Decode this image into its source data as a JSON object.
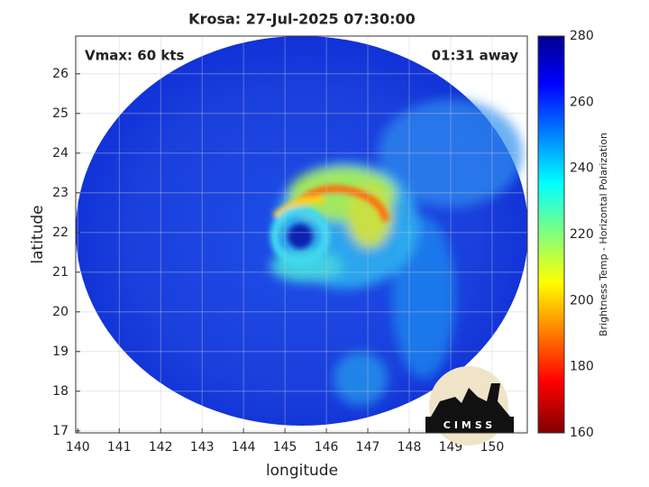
{
  "chart_data": {
    "type": "map",
    "title": "Krosa: 27-Jul-2025 07:30:00",
    "annotations": [
      "Vmax: 60 kts",
      "01:31 away"
    ],
    "xlabel": "longitude",
    "ylabel": "latitude",
    "xlim": [
      139.95,
      150.85
    ],
    "ylim": [
      16.95,
      26.95
    ],
    "xticks": [
      140,
      141,
      142,
      143,
      144,
      145,
      146,
      147,
      148,
      149,
      150
    ],
    "yticks": [
      17,
      18,
      19,
      20,
      21,
      22,
      23,
      24,
      25,
      26
    ],
    "grid": true,
    "colorbar": {
      "label": "Brightness Temp - Horizontal Polarization",
      "clim": [
        160,
        280
      ],
      "ticks": [
        160,
        180,
        200,
        220,
        240,
        260,
        280
      ]
    },
    "logo": "CIMSS"
  }
}
